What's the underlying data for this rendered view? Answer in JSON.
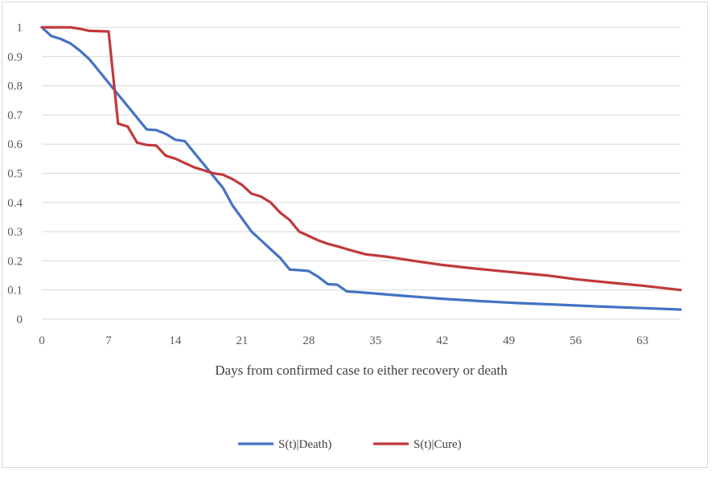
{
  "chart_data": {
    "type": "line",
    "title": "",
    "xlabel": "Days from confirmed case to either recovery or death",
    "ylabel": "",
    "xlim": [
      0,
      67
    ],
    "ylim": [
      0,
      1
    ],
    "x_ticks": [
      0,
      7,
      14,
      21,
      28,
      35,
      42,
      49,
      56,
      63
    ],
    "x_tick_labels": [
      "0",
      "7",
      "14",
      "21",
      "28",
      "35",
      "42",
      "49",
      "56",
      "63"
    ],
    "y_ticks": [
      0,
      0.1,
      0.2,
      0.3,
      0.4,
      0.5,
      0.6,
      0.7,
      0.8,
      0.9,
      1
    ],
    "y_tick_labels": [
      "0",
      "0.1",
      "0.2",
      "0.3",
      "0.4",
      "0.5",
      "0.6",
      "0.7",
      "0.8",
      "0.9",
      "1"
    ],
    "grid": "horizontal",
    "legend_position": "bottom",
    "series": [
      {
        "name": "S(t)|Death)",
        "color": "#4472c4",
        "points": [
          [
            0,
            1
          ],
          [
            1,
            0.97
          ],
          [
            2,
            0.96
          ],
          [
            3,
            0.945
          ],
          [
            4,
            0.92
          ],
          [
            5,
            0.89
          ],
          [
            6,
            0.85
          ],
          [
            7,
            0.81
          ],
          [
            8,
            0.77
          ],
          [
            9,
            0.73
          ],
          [
            10,
            0.69
          ],
          [
            11,
            0.65
          ],
          [
            12,
            0.648
          ],
          [
            13,
            0.635
          ],
          [
            14,
            0.615
          ],
          [
            15,
            0.61
          ],
          [
            16,
            0.57
          ],
          [
            17,
            0.53
          ],
          [
            18,
            0.49
          ],
          [
            19,
            0.45
          ],
          [
            20,
            0.39
          ],
          [
            21,
            0.345
          ],
          [
            22,
            0.3
          ],
          [
            23,
            0.27
          ],
          [
            24,
            0.24
          ],
          [
            25,
            0.21
          ],
          [
            26,
            0.17
          ],
          [
            27,
            0.168
          ],
          [
            28,
            0.165
          ],
          [
            29,
            0.145
          ],
          [
            30,
            0.12
          ],
          [
            31,
            0.118
          ],
          [
            32,
            0.095
          ],
          [
            33,
            0.093
          ],
          [
            35,
            0.088
          ],
          [
            38,
            0.08
          ],
          [
            42,
            0.07
          ],
          [
            46,
            0.062
          ],
          [
            50,
            0.055
          ],
          [
            54,
            0.05
          ],
          [
            58,
            0.044
          ],
          [
            63,
            0.038
          ],
          [
            67,
            0.033
          ]
        ]
      },
      {
        "name": "S(t)|Cure)",
        "color": "#c0393b",
        "points": [
          [
            0,
            1
          ],
          [
            3,
            1
          ],
          [
            4,
            0.995
          ],
          [
            5,
            0.988
          ],
          [
            7,
            0.986
          ],
          [
            8,
            0.67
          ],
          [
            9,
            0.66
          ],
          [
            10,
            0.605
          ],
          [
            11,
            0.597
          ],
          [
            12,
            0.595
          ],
          [
            13,
            0.56
          ],
          [
            14,
            0.55
          ],
          [
            15,
            0.535
          ],
          [
            16,
            0.52
          ],
          [
            17,
            0.51
          ],
          [
            18,
            0.5
          ],
          [
            19,
            0.495
          ],
          [
            20,
            0.48
          ],
          [
            21,
            0.46
          ],
          [
            22,
            0.43
          ],
          [
            23,
            0.42
          ],
          [
            24,
            0.4
          ],
          [
            25,
            0.365
          ],
          [
            26,
            0.34
          ],
          [
            27,
            0.3
          ],
          [
            28,
            0.285
          ],
          [
            29,
            0.27
          ],
          [
            30,
            0.258
          ],
          [
            31,
            0.25
          ],
          [
            32,
            0.24
          ],
          [
            34,
            0.222
          ],
          [
            36,
            0.215
          ],
          [
            38,
            0.205
          ],
          [
            40,
            0.195
          ],
          [
            42,
            0.186
          ],
          [
            45,
            0.175
          ],
          [
            49,
            0.162
          ],
          [
            53,
            0.15
          ],
          [
            56,
            0.137
          ],
          [
            60,
            0.124
          ],
          [
            63,
            0.115
          ],
          [
            67,
            0.1
          ]
        ]
      }
    ]
  }
}
